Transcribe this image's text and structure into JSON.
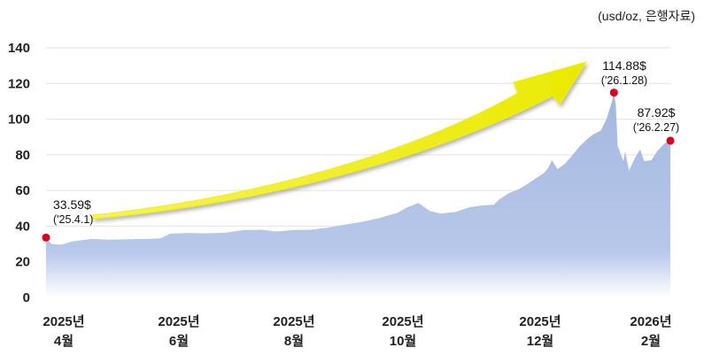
{
  "unit_note": "(usd/oz, 은행자료)",
  "chart_data": {
    "type": "area",
    "title": "",
    "xlabel": "",
    "ylabel": "",
    "ylim": [
      0,
      140
    ],
    "yticks": [
      0,
      20,
      40,
      60,
      80,
      100,
      120,
      140
    ],
    "grid": true,
    "x_range": [
      "2025-04-01",
      "2026-02-27"
    ],
    "x_ticks": [
      {
        "date": "2025-04-01",
        "line1": "2025년",
        "line2": "4월"
      },
      {
        "date": "2025-06-01",
        "line1": "2025년",
        "line2": "6월"
      },
      {
        "date": "2025-08-01",
        "line1": "2025년",
        "line2": "8월"
      },
      {
        "date": "2025-10-01",
        "line1": "2025년",
        "line2": "10월"
      },
      {
        "date": "2025-12-01",
        "line1": "2025년",
        "line2": "12월"
      },
      {
        "date": "2026-02-01",
        "line1": "2026년",
        "line2": "2월"
      }
    ],
    "series": [
      {
        "color": "#a7b9e0",
        "points": [
          [
            "2025-04-01",
            33.6
          ],
          [
            "2025-04-04",
            30.0
          ],
          [
            "2025-04-09",
            29.6
          ],
          [
            "2025-04-15",
            31.5
          ],
          [
            "2025-04-25",
            32.8
          ],
          [
            "2025-05-05",
            32.4
          ],
          [
            "2025-05-15",
            32.6
          ],
          [
            "2025-05-25",
            32.8
          ],
          [
            "2025-06-01",
            33.2
          ],
          [
            "2025-06-06",
            35.8
          ],
          [
            "2025-06-15",
            36.2
          ],
          [
            "2025-06-25",
            36.0
          ],
          [
            "2025-07-05",
            36.3
          ],
          [
            "2025-07-15",
            37.8
          ],
          [
            "2025-07-25",
            38.0
          ],
          [
            "2025-08-01",
            37.0
          ],
          [
            "2025-08-10",
            37.8
          ],
          [
            "2025-08-20",
            38.0
          ],
          [
            "2025-08-30",
            39.3
          ],
          [
            "2025-09-05",
            40.5
          ],
          [
            "2025-09-15",
            42.2
          ],
          [
            "2025-09-25",
            44.5
          ],
          [
            "2025-10-05",
            47.5
          ],
          [
            "2025-10-10",
            50.5
          ],
          [
            "2025-10-16",
            53.0
          ],
          [
            "2025-10-22",
            48.5
          ],
          [
            "2025-10-28",
            47.0
          ],
          [
            "2025-11-05",
            48.0
          ],
          [
            "2025-11-12",
            50.5
          ],
          [
            "2025-11-18",
            51.5
          ],
          [
            "2025-11-25",
            52.0
          ],
          [
            "2025-11-28",
            55.0
          ],
          [
            "2025-12-03",
            58.5
          ],
          [
            "2025-12-08",
            60.5
          ],
          [
            "2025-12-12",
            63.0
          ],
          [
            "2025-12-17",
            66.5
          ],
          [
            "2025-12-22",
            70.0
          ],
          [
            "2025-12-24",
            72.5
          ],
          [
            "2025-12-26",
            77.0
          ],
          [
            "2025-12-29",
            72.0
          ],
          [
            "2026-01-02",
            75.0
          ],
          [
            "2026-01-06",
            80.0
          ],
          [
            "2026-01-10",
            85.0
          ],
          [
            "2026-01-14",
            89.0
          ],
          [
            "2026-01-17",
            91.5
          ],
          [
            "2026-01-21",
            93.5
          ],
          [
            "2026-01-24",
            100.0
          ],
          [
            "2026-01-27",
            110.0
          ],
          [
            "2026-01-28",
            114.88
          ],
          [
            "2026-01-29",
            108.0
          ],
          [
            "2026-01-30",
            85.0
          ],
          [
            "2026-02-02",
            76.5
          ],
          [
            "2026-02-03",
            82.0
          ],
          [
            "2026-02-05",
            71.0
          ],
          [
            "2026-02-08",
            78.0
          ],
          [
            "2026-02-11",
            83.0
          ],
          [
            "2026-02-13",
            76.5
          ],
          [
            "2026-02-17",
            77.0
          ],
          [
            "2026-02-20",
            82.0
          ],
          [
            "2026-02-24",
            86.5
          ],
          [
            "2026-02-27",
            87.92
          ]
        ]
      }
    ],
    "annotations": [
      {
        "date": "2025-04-01",
        "value": 33.59,
        "label": "33.59$",
        "date_label": "('25.4.1)"
      },
      {
        "date": "2026-01-28",
        "value": 114.88,
        "label": "114.88$",
        "date_label": "('26.1.28)"
      },
      {
        "date": "2026-02-27",
        "value": 87.92,
        "label": "87.92$",
        "date_label": "('26.2.27)"
      }
    ],
    "marker_color": "#e0001b",
    "trend_arrow": {
      "color": "#f4f000"
    }
  }
}
